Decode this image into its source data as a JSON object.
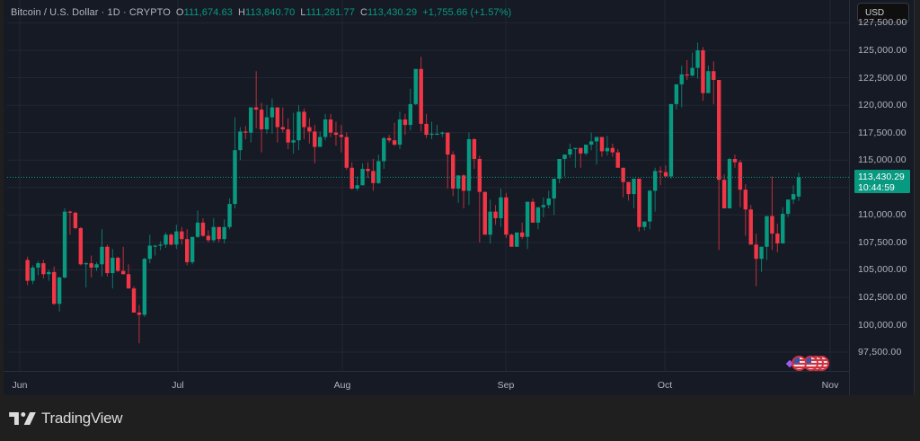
{
  "header": {
    "symbol_title": "Bitcoin / U.S. Dollar · 1D · CRYPTO",
    "open_label": "O",
    "open": "111,674.63",
    "high_label": "H",
    "high": "113,840.70",
    "low_label": "L",
    "low": "111,281.77",
    "close_label": "C",
    "close": "113,430.29",
    "change": "+1,755.66 (+1.57%)"
  },
  "currency_button": "USD",
  "price_axis": {
    "labels": [
      "127,500.00",
      "125,000.00",
      "122,500.00",
      "120,000.00",
      "117,500.00",
      "115,000.00",
      "110,000.00",
      "107,500.00",
      "105,000.00",
      "102,500.00",
      "100,000.00",
      "97,500.00"
    ]
  },
  "last_price_tag": {
    "price": "113,430.29",
    "countdown": "10:44:59"
  },
  "time_axis": {
    "labels": [
      "Jun",
      "Jul",
      "Aug",
      "Sep",
      "Oct",
      "Nov"
    ]
  },
  "footer": {
    "brand": "TradingView"
  },
  "colors": {
    "up": "#089981",
    "down": "#f23645",
    "background": "#161a25",
    "grid": "#232735",
    "text": "#b2b5be"
  },
  "chart_data": {
    "type": "candlestick",
    "title": "Bitcoin / U.S. Dollar · 1D · CRYPTO",
    "xlabel": "",
    "ylabel": "USD",
    "ylim": [
      96500,
      127500
    ],
    "x_ticks": [
      "Jun",
      "Jul",
      "Aug",
      "Sep",
      "Oct",
      "Nov"
    ],
    "y_ticks": [
      97500,
      100000,
      102500,
      105000,
      107500,
      110000,
      112500,
      115000,
      117500,
      120000,
      122500,
      125000
    ],
    "grid": true,
    "last": {
      "open": 111674.63,
      "high": 113840.7,
      "low": 111281.77,
      "close": 113430.29,
      "change": 1755.66,
      "change_pct": 1.57
    },
    "start_date": "2025-05-30",
    "ohlc": [
      [
        105900,
        106200,
        103600,
        104000
      ],
      [
        104000,
        105400,
        103700,
        105200
      ],
      [
        105200,
        105800,
        104500,
        105600
      ],
      [
        105600,
        105900,
        104200,
        104600
      ],
      [
        104600,
        105000,
        104000,
        104800
      ],
      [
        104800,
        105300,
        101800,
        101900
      ],
      [
        101900,
        104400,
        101200,
        104300
      ],
      [
        104300,
        110600,
        104200,
        110300
      ],
      [
        110300,
        110400,
        108200,
        110200
      ],
      [
        110200,
        110300,
        108700,
        108800
      ],
      [
        108800,
        108900,
        105400,
        105500
      ],
      [
        105500,
        105700,
        103400,
        105600
      ],
      [
        105600,
        106300,
        104300,
        105200
      ],
      [
        105200,
        105700,
        104900,
        105500
      ],
      [
        105500,
        108700,
        104400,
        107100
      ],
      [
        107100,
        107300,
        104400,
        104700
      ],
      [
        104700,
        106900,
        103300,
        106100
      ],
      [
        106100,
        106200,
        104800,
        104900
      ],
      [
        104900,
        107100,
        104900,
        104600
      ],
      [
        104600,
        105500,
        103500,
        103300
      ],
      [
        103300,
        103500,
        101200,
        101100
      ],
      [
        101100,
        101800,
        98300,
        100900
      ],
      [
        100900,
        106100,
        100700,
        106000
      ],
      [
        106000,
        108200,
        105600,
        107200
      ],
      [
        107200,
        107300,
        106300,
        107200
      ],
      [
        107200,
        107600,
        106800,
        107300
      ],
      [
        107300,
        108400,
        107000,
        108200
      ],
      [
        108200,
        108300,
        107200,
        107300
      ],
      [
        107300,
        109100,
        106900,
        108500
      ],
      [
        108500,
        108900,
        107300,
        107800
      ],
      [
        107800,
        108700,
        105400,
        105700
      ],
      [
        105700,
        108000,
        105500,
        108000
      ],
      [
        108000,
        110400,
        107900,
        109300
      ],
      [
        109300,
        109700,
        108000,
        108100
      ],
      [
        108100,
        108600,
        107500,
        107700
      ],
      [
        107700,
        109700,
        107500,
        108900
      ],
      [
        108900,
        108900,
        107500,
        107800
      ],
      [
        107800,
        109600,
        107400,
        108900
      ],
      [
        108900,
        111500,
        108700,
        111000
      ],
      [
        111000,
        118900,
        110600,
        115900
      ],
      [
        115900,
        118000,
        115000,
        117600
      ],
      [
        117600,
        118100,
        116900,
        117500
      ],
      [
        117500,
        119100,
        116600,
        119800
      ],
      [
        119800,
        123100,
        117900,
        119600
      ],
      [
        119600,
        120200,
        115700,
        117800
      ],
      [
        117800,
        120000,
        117400,
        118900
      ],
      [
        118900,
        120600,
        117400,
        119800
      ],
      [
        119800,
        119600,
        116600,
        118000
      ],
      [
        118000,
        119800,
        117500,
        117800
      ],
      [
        117800,
        118800,
        116000,
        116600
      ],
      [
        116600,
        119300,
        115600,
        116800
      ],
      [
        116800,
        120000,
        115900,
        119400
      ],
      [
        119400,
        119700,
        116900,
        118000
      ],
      [
        118000,
        118800,
        116500,
        117600
      ],
      [
        117600,
        118200,
        114700,
        116200
      ],
      [
        116200,
        117600,
        116200,
        117100
      ],
      [
        117100,
        119200,
        116800,
        118700
      ],
      [
        118700,
        119200,
        117100,
        117500
      ],
      [
        117500,
        118500,
        116300,
        117300
      ],
      [
        117300,
        118200,
        115700,
        117100
      ],
      [
        117100,
        117500,
        114100,
        114300
      ],
      [
        114300,
        114800,
        112300,
        112400
      ],
      [
        112400,
        113500,
        112200,
        112700
      ],
      [
        112700,
        114700,
        112700,
        114200
      ],
      [
        114200,
        114800,
        113400,
        114000
      ],
      [
        114000,
        115100,
        112200,
        112900
      ],
      [
        112900,
        115500,
        112800,
        114900
      ],
      [
        114900,
        117100,
        114200,
        117000
      ],
      [
        117000,
        117300,
        116600,
        116800
      ],
      [
        116800,
        118400,
        116300,
        116400
      ],
      [
        116400,
        119400,
        116000,
        118700
      ],
      [
        118700,
        119200,
        117300,
        118200
      ],
      [
        118200,
        121500,
        117700,
        120100
      ],
      [
        120100,
        122300,
        120000,
        123300
      ],
      [
        123300,
        124400,
        117600,
        118300
      ],
      [
        118300,
        119200,
        117000,
        117300
      ],
      [
        117300,
        118500,
        116900,
        117400
      ],
      [
        117400,
        118200,
        117400,
        117400
      ],
      [
        117400,
        117600,
        117100,
        117500
      ],
      [
        117500,
        116100,
        112400,
        115500
      ],
      [
        115500,
        115800,
        111700,
        112400
      ],
      [
        112400,
        113300,
        111100,
        113600
      ],
      [
        113600,
        113700,
        110600,
        112200
      ],
      [
        112200,
        117500,
        110900,
        116900
      ],
      [
        116900,
        117000,
        114200,
        115100
      ],
      [
        115100,
        115400,
        107500,
        112100
      ],
      [
        112100,
        111600,
        108600,
        108200
      ],
      [
        108200,
        111400,
        107400,
        110300
      ],
      [
        110300,
        110900,
        109100,
        109700
      ],
      [
        109700,
        112400,
        108900,
        111600
      ],
      [
        111600,
        112000,
        107900,
        108200
      ],
      [
        108200,
        108300,
        107600,
        107100
      ],
      [
        107100,
        108000,
        107200,
        108400
      ],
      [
        108400,
        109300,
        107800,
        108000
      ],
      [
        108000,
        111000,
        106900,
        111200
      ],
      [
        111200,
        111500,
        109600,
        109300
      ],
      [
        109300,
        110400,
        108700,
        110700
      ],
      [
        110700,
        111600,
        109800,
        110900
      ],
      [
        110900,
        112200,
        110600,
        111500
      ],
      [
        111500,
        113200,
        110000,
        113300
      ],
      [
        113300,
        114700,
        112900,
        115100
      ],
      [
        115100,
        115200,
        113500,
        115500
      ],
      [
        115500,
        116500,
        115200,
        116000
      ],
      [
        116000,
        116100,
        114300,
        116100
      ],
      [
        116100,
        115600,
        114300,
        115600
      ],
      [
        115600,
        116200,
        115400,
        116400
      ],
      [
        116400,
        117500,
        115900,
        116700
      ],
      [
        116700,
        116900,
        114600,
        117100
      ],
      [
        117100,
        116900,
        115300,
        115800
      ],
      [
        115800,
        117200,
        115400,
        116100
      ],
      [
        116100,
        116500,
        115300,
        115700
      ],
      [
        115700,
        116000,
        114500,
        114300
      ],
      [
        114300,
        114300,
        111600,
        113000
      ],
      [
        113000,
        113000,
        111300,
        111900
      ],
      [
        111900,
        113300,
        110600,
        113300
      ],
      [
        113300,
        113300,
        108500,
        108900
      ],
      [
        108900,
        109200,
        108600,
        109400
      ],
      [
        109400,
        112300,
        108700,
        112200
      ],
      [
        112200,
        114300,
        110300,
        114000
      ],
      [
        114000,
        114400,
        112700,
        113900
      ],
      [
        113900,
        114500,
        113600,
        113500
      ],
      [
        113500,
        118300,
        113300,
        120100
      ],
      [
        120100,
        121800,
        119600,
        121900
      ],
      [
        121900,
        123600,
        119800,
        122800
      ],
      [
        122800,
        124100,
        122300,
        122700
      ],
      [
        122700,
        124800,
        122600,
        123400
      ],
      [
        123400,
        125700,
        122400,
        125000
      ],
      [
        125000,
        125300,
        120400,
        121100
      ],
      [
        121100,
        123600,
        121300,
        123100
      ],
      [
        123100,
        124000,
        120100,
        122300
      ],
      [
        122300,
        122100,
        106800,
        113200
      ],
      [
        113200,
        113700,
        110700,
        110600
      ],
      [
        110600,
        115200,
        110900,
        115100
      ],
      [
        115100,
        115500,
        114300,
        114800
      ],
      [
        114800,
        115000,
        110700,
        112300
      ],
      [
        112300,
        112800,
        108100,
        110500
      ],
      [
        110500,
        110900,
        107500,
        107300
      ],
      [
        107300,
        108300,
        103500,
        106000
      ],
      [
        106000,
        106800,
        104800,
        107100
      ],
      [
        107100,
        109600,
        105900,
        109900
      ],
      [
        109900,
        113500,
        106800,
        108300
      ],
      [
        108300,
        109200,
        106600,
        107400
      ],
      [
        107400,
        110700,
        107800,
        110100
      ],
      [
        110100,
        110800,
        109800,
        111400
      ],
      [
        111400,
        112700,
        111000,
        111900
      ],
      [
        111674,
        113841,
        111282,
        113430
      ]
    ]
  }
}
